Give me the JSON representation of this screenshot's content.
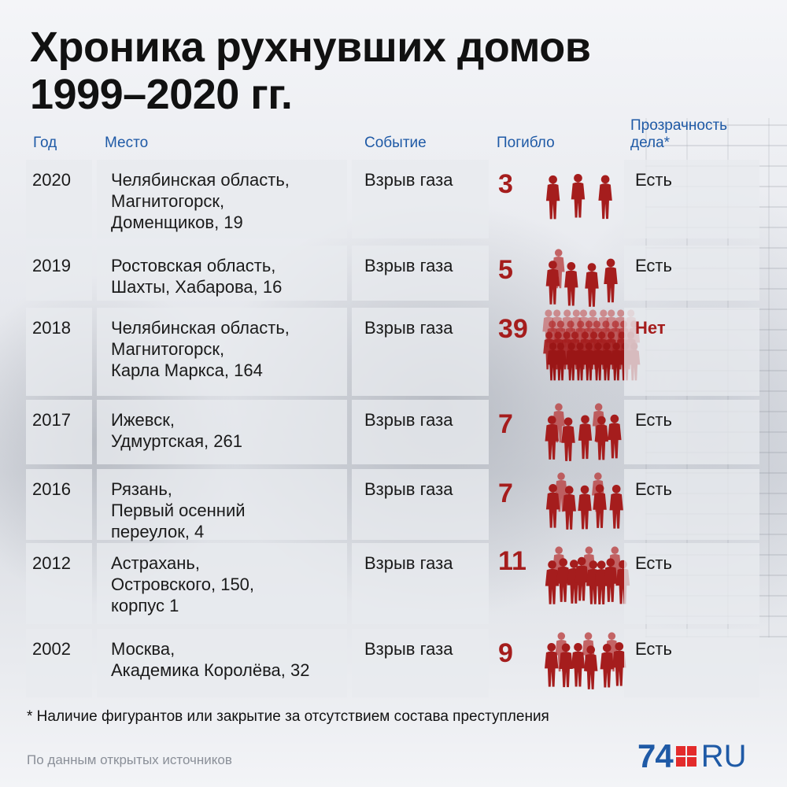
{
  "title": {
    "line1": "Хроника рухнувших домов",
    "line2": "1999–2020 гг."
  },
  "headers": {
    "year": "Год",
    "place": "Место",
    "event": "Событие",
    "dead": "Погибло",
    "transparency_line1": "Прозрачность",
    "transparency_line2": "дела*"
  },
  "rows": [
    {
      "year": "2020",
      "place": [
        "Челябинская область,",
        "Магнитогорск,",
        "Доменщиков, 19"
      ],
      "event": "Взрыв газа",
      "dead": "3",
      "transparency": "Есть",
      "transparency_flag": "yes"
    },
    {
      "year": "2019",
      "place": [
        "Ростовская область,",
        "Шахты, Хабарова, 16"
      ],
      "event": "Взрыв газа",
      "dead": "5",
      "transparency": "Есть",
      "transparency_flag": "yes"
    },
    {
      "year": "2018",
      "place": [
        "Челябинская область,",
        "Магнитогорск,",
        "Карла Маркса, 164"
      ],
      "event": "Взрыв газа",
      "dead": "39",
      "transparency": "Нет",
      "transparency_flag": "no"
    },
    {
      "year": "2017",
      "place": [
        "Ижевск,",
        "Удмуртская, 261"
      ],
      "event": "Взрыв газа",
      "dead": "7",
      "transparency": "Есть",
      "transparency_flag": "yes"
    },
    {
      "year": "2016",
      "place": [
        "Рязань,",
        "Первый осенний",
        "переулок, 4"
      ],
      "event": "Взрыв газа",
      "dead": "7",
      "transparency": "Есть",
      "transparency_flag": "yes"
    },
    {
      "year": "2012",
      "place": [
        "Астрахань,",
        "Островского, 150,",
        "корпус 1"
      ],
      "event": "Взрыв газа",
      "dead": "11",
      "transparency": "Есть",
      "transparency_flag": "yes"
    },
    {
      "year": "2002",
      "place": [
        "Москва,",
        "Академика Королёва, 32"
      ],
      "event": "Взрыв газа",
      "dead": "9",
      "transparency": "Есть",
      "transparency_flag": "yes"
    }
  ],
  "footnote": "* Наличие фигурантов или закрытие за отсутствием состава преступления",
  "source": "По данным открытых источников",
  "logo": {
    "number": "74",
    "domain": "RU"
  },
  "colors": {
    "accent_red": "#a51d1d",
    "header_blue": "#1f5aa6",
    "logo_red": "#e32b2b"
  }
}
